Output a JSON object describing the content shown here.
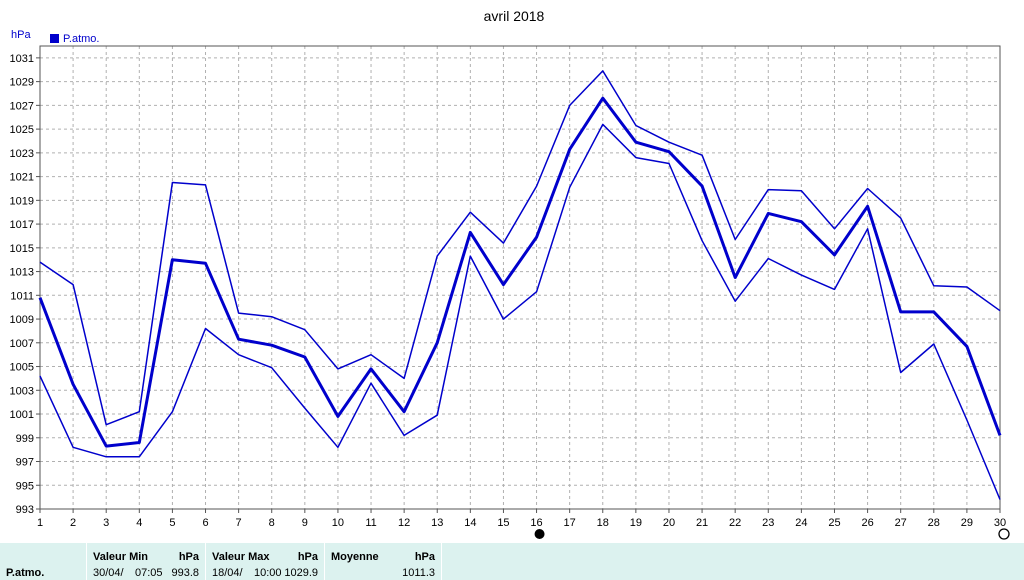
{
  "chart_data": {
    "type": "line",
    "title": "avril 2018",
    "ylabel": "hPa",
    "legend": {
      "label": "P.atmo.",
      "color": "#0000cc",
      "placement": "top-left"
    },
    "ylim": [
      993,
      1032
    ],
    "yticks": [
      "993",
      "995",
      "997",
      "999",
      "1001",
      "1003",
      "1005",
      "1007",
      "1009",
      "1011",
      "1013",
      "1015",
      "1017",
      "1019",
      "1021",
      "1023",
      "1025",
      "1027",
      "1029",
      "1031"
    ],
    "x": [
      1,
      2,
      3,
      4,
      5,
      6,
      7,
      8,
      9,
      10,
      11,
      12,
      13,
      14,
      15,
      16,
      17,
      18,
      19,
      20,
      21,
      22,
      23,
      24,
      25,
      26,
      27,
      28,
      29,
      30
    ],
    "grid": true,
    "series": [
      {
        "values": [
          1013.8,
          1011.9,
          1000.1,
          1001.2,
          1020.5,
          1020.3,
          1009.5,
          1009.2,
          1008.1,
          1004.8,
          1006.0,
          1004.0,
          1014.3,
          1018.0,
          1015.4,
          1020.2,
          1027.0,
          1029.9,
          1025.3,
          1023.9,
          1022.8,
          1015.7,
          1019.9,
          1019.8,
          1016.6,
          1020.0,
          1017.5,
          1011.8,
          1011.7,
          1009.7
        ]
      },
      {
        "values": [
          1010.8,
          1003.5,
          998.3,
          998.6,
          1014.0,
          1013.7,
          1007.3,
          1006.8,
          1005.8,
          1000.8,
          1004.8,
          1001.2,
          1007.0,
          1016.3,
          1011.9,
          1015.9,
          1023.3,
          1027.6,
          1023.9,
          1023.1,
          1020.2,
          1012.5,
          1017.9,
          1017.2,
          1014.4,
          1018.5,
          1009.6,
          1009.6,
          1006.7,
          999.2
        ]
      },
      {
        "values": [
          1004.2,
          998.2,
          997.4,
          997.4,
          1001.2,
          1008.2,
          1006.0,
          1004.9,
          1001.5,
          998.2,
          1003.6,
          999.2,
          1000.9,
          1014.3,
          1009.0,
          1011.3,
          1020.1,
          1025.4,
          1022.6,
          1022.1,
          1015.6,
          1010.5,
          1014.1,
          1012.7,
          1011.5,
          1016.6,
          1004.5,
          1006.9,
          1000.5,
          993.8
        ]
      }
    ],
    "markers": {
      "filled_at": 16,
      "hollow_at": 30
    }
  },
  "footer": {
    "row_label": "P.atmo.",
    "min": {
      "header": "Valeur Min",
      "unit": "hPa",
      "date": "30/04/",
      "time": "07:05",
      "value": "993.8"
    },
    "max": {
      "header": "Valeur Max",
      "unit": "hPa",
      "date": "18/04/",
      "time": "10:00",
      "value": "1029.9"
    },
    "avg": {
      "header": "Moyenne",
      "unit": "hPa",
      "value": "1011.3"
    }
  }
}
